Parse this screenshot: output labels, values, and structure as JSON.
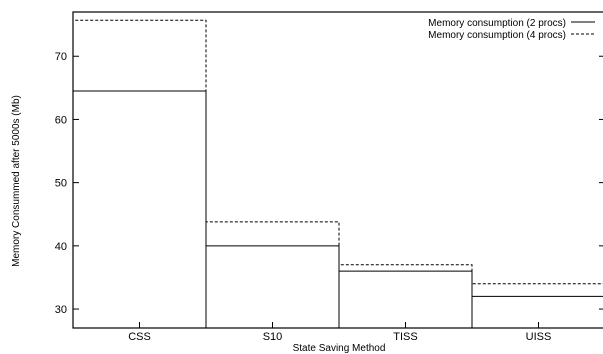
{
  "chart_data": {
    "type": "bar",
    "title": "",
    "xlabel": "State Saving Method",
    "ylabel": "Memory Consummed after 5000s (Mb)",
    "categories": [
      "CSS",
      "S10",
      "TISS",
      "UISS"
    ],
    "ylim": [
      27,
      77
    ],
    "yticks": [
      30,
      40,
      50,
      60,
      70
    ],
    "grid": false,
    "legend": "top-right",
    "series": [
      {
        "name": "Memory consumption (2 procs)",
        "values": [
          64.5,
          40.0,
          36.0,
          32.0
        ],
        "line_style": "solid"
      },
      {
        "name": "Memory consumption (4 procs)",
        "values": [
          75.7,
          43.8,
          37.0,
          34.0
        ],
        "line_style": "dashed"
      }
    ]
  }
}
